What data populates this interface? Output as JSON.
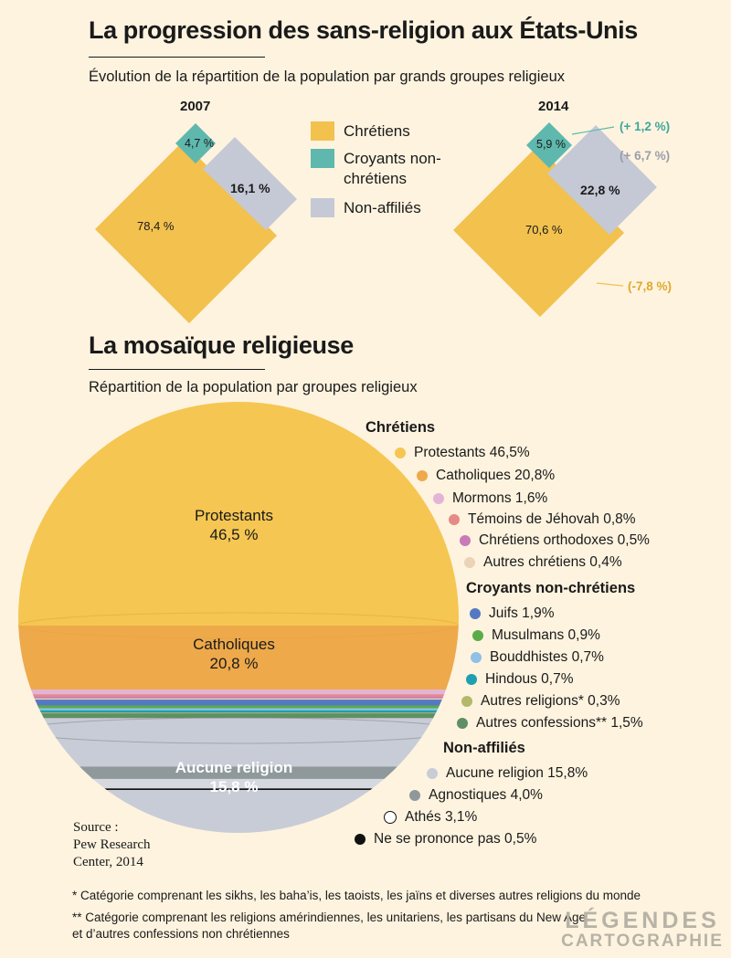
{
  "header": {
    "title": "La progression des sans-religion aux États-Unis",
    "subtitle": "Évolution de la répartition de la population par grands groupes religieux"
  },
  "legend": [
    {
      "label": "Chrétiens",
      "color": "#f2c14e"
    },
    {
      "label": "Croyants non-chrétiens",
      "color": "#5fb8ad"
    },
    {
      "label": "Non-affiliés",
      "color": "#c5c9d6"
    }
  ],
  "chart_data": [
    {
      "type": "area",
      "title": "2007",
      "categories": [
        "Chrétiens",
        "Croyants non-chrétiens",
        "Non-affiliés"
      ],
      "values": [
        78.4,
        4.7,
        16.1
      ],
      "labels": [
        "78,4 %",
        "4,7 %",
        "16,1 %"
      ]
    },
    {
      "type": "area",
      "title": "2014",
      "categories": [
        "Chrétiens",
        "Croyants non-chrétiens",
        "Non-affiliés"
      ],
      "values": [
        70.6,
        5.9,
        22.8
      ],
      "labels": [
        "70,6 %",
        "5,9 %",
        "22,8 %"
      ],
      "changes": [
        "(-7,8 %)",
        "(+ 1,2 %)",
        "(+ 6,7 %)"
      ]
    },
    {
      "type": "pie",
      "title": "La mosaïque religieuse",
      "subtitle": "Répartition de la population par groupes religieux",
      "pie_labels": [
        {
          "name": "Protestants",
          "value": "46,5 %"
        },
        {
          "name": "Catholiques",
          "value": "20,8 %"
        },
        {
          "name": "Aucune religion",
          "value": "15,8 %"
        }
      ],
      "groups": [
        {
          "name": "Chrétiens",
          "items": [
            {
              "label": "Protestants 46,5%",
              "value": 46.5,
              "color": "#f5c652"
            },
            {
              "label": "Catholiques 20,8%",
              "value": 20.8,
              "color": "#eea94a"
            },
            {
              "label": "Mormons 1,6%",
              "value": 1.6,
              "color": "#e3b4d6"
            },
            {
              "label": "Témoins de Jéhovah 0,8%",
              "value": 0.8,
              "color": "#e58a88"
            },
            {
              "label": "Chrétiens orthodoxes 0,5%",
              "value": 0.5,
              "color": "#c97ab7"
            },
            {
              "label": "Autres chrétiens 0,4%",
              "value": 0.4,
              "color": "#ead3b8"
            }
          ]
        },
        {
          "name": "Croyants non-chrétiens",
          "items": [
            {
              "label": "Juifs 1,9%",
              "value": 1.9,
              "color": "#5479c2"
            },
            {
              "label": "Musulmans 0,9%",
              "value": 0.9,
              "color": "#5aac48"
            },
            {
              "label": "Bouddhistes 0,7%",
              "value": 0.7,
              "color": "#8fc0e6"
            },
            {
              "label": "Hindous 0,7%",
              "value": 0.7,
              "color": "#1f9fb2"
            },
            {
              "label": "Autres religions* 0,3%",
              "value": 0.3,
              "color": "#b5b86a"
            },
            {
              "label": "Autres confessions** 1,5%",
              "value": 1.5,
              "color": "#5f8f64"
            }
          ]
        },
        {
          "name": "Non-affiliés",
          "items": [
            {
              "label": "Aucune religion 15,8%",
              "value": 15.8,
              "color": "#c8ccd6"
            },
            {
              "label": "Agnostiques 4,0%",
              "value": 4.0,
              "color": "#8f999b"
            },
            {
              "label": "Athés 3,1%",
              "value": 3.1,
              "color": "#ffffff"
            },
            {
              "label": "Ne se prononce pas 0,5%",
              "value": 0.5,
              "color": "#111111"
            }
          ]
        }
      ]
    }
  ],
  "source": [
    "Source :",
    "Pew Research",
    "Center, 2014"
  ],
  "footnotes": [
    "* Catégorie comprenant les sikhs, les baha’is, les taoists, les jaïns et diverses autres religions du monde",
    "** Catégorie comprenant les religions amérindiennes, les unitariens, les partisans du New Age",
    "et d’autres confessions non chrétiennes"
  ],
  "logo": [
    "LÉGENDES",
    "CARTOGRAPHIE"
  ]
}
